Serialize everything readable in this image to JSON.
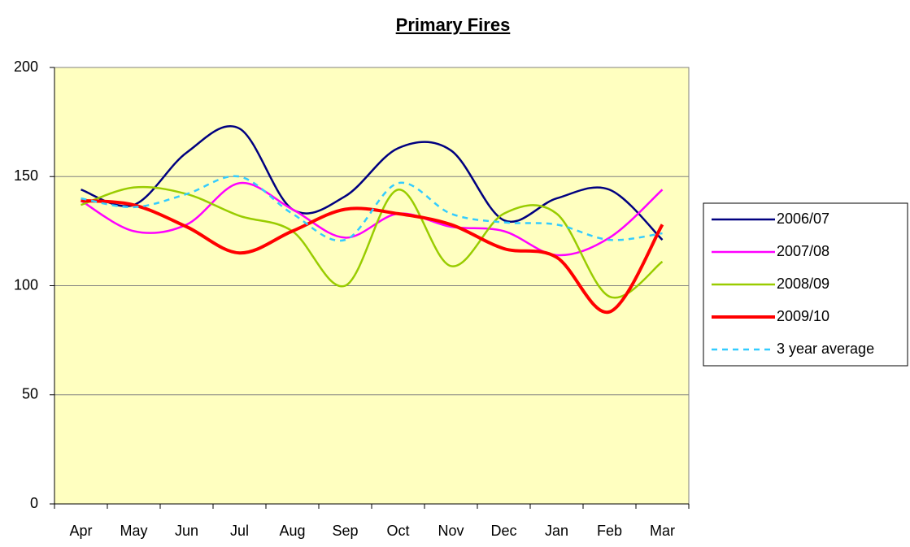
{
  "chart_data": {
    "type": "line",
    "title": "Primary Fires",
    "categories": [
      "Apr",
      "May",
      "Jun",
      "Jul",
      "Aug",
      "Sep",
      "Oct",
      "Nov",
      "Dec",
      "Jan",
      "Feb",
      "Mar"
    ],
    "series": [
      {
        "name": "2006/07",
        "color": "#000080",
        "values": [
          144,
          137,
          161,
          172,
          135,
          141,
          163,
          162,
          130,
          140,
          144,
          121
        ]
      },
      {
        "name": "2007/08",
        "color": "#ff00ff",
        "values": [
          139,
          125,
          128,
          147,
          135,
          122,
          133,
          127,
          125,
          114,
          122,
          144
        ]
      },
      {
        "name": "2008/09",
        "color": "#99cc00",
        "values": [
          137,
          145,
          142,
          132,
          125,
          100,
          144,
          109,
          133,
          133,
          95,
          111
        ]
      },
      {
        "name": "2009/10",
        "color": "#ff0000",
        "values": [
          139,
          137,
          127,
          115,
          125,
          135,
          133,
          128,
          117,
          113,
          88,
          128
        ]
      },
      {
        "name": "3 year average",
        "color": "#33ccff",
        "values": [
          140,
          136,
          142,
          150,
          133,
          121,
          147,
          133,
          129,
          128,
          121,
          124
        ]
      }
    ],
    "ylim": [
      0,
      200
    ],
    "yticks": [
      0,
      50,
      100,
      150,
      200
    ],
    "grid": true,
    "smooth": true,
    "legend": "right"
  }
}
